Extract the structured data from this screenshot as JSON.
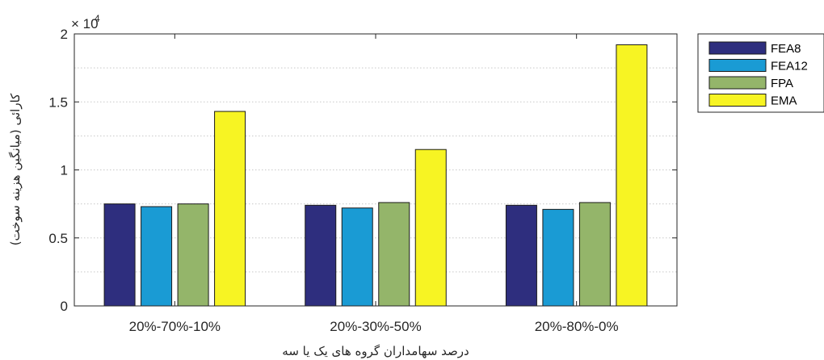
{
  "chart_data": {
    "type": "bar",
    "categories": [
      "20%-70%-10%",
      "20%-30%-50%",
      "20%-80%-0%"
    ],
    "series": [
      {
        "name": "FEA8",
        "color": "#2e2e7e",
        "values": [
          7500,
          7400,
          7400
        ]
      },
      {
        "name": "FEA12",
        "color": "#1a9bd4",
        "values": [
          7300,
          7200,
          7100
        ]
      },
      {
        "name": "FPA",
        "color": "#94b56a",
        "values": [
          7500,
          7600,
          7600
        ]
      },
      {
        "name": "EMA",
        "color": "#f7f423",
        "values": [
          14300,
          11500,
          19200
        ]
      }
    ],
    "ylim": [
      0,
      20000
    ],
    "yticks": [
      "0",
      "0.5",
      "1",
      "1.5",
      "2"
    ],
    "y_multiplier_base": "× 10",
    "y_multiplier_exponent": "4",
    "ylabel": "کارائی (میانگین هزینه سوخت)",
    "xlabel": "درصد سهامداران گروه های یک یا سه",
    "grid": "horizontal dotted",
    "legend": "top-right"
  }
}
